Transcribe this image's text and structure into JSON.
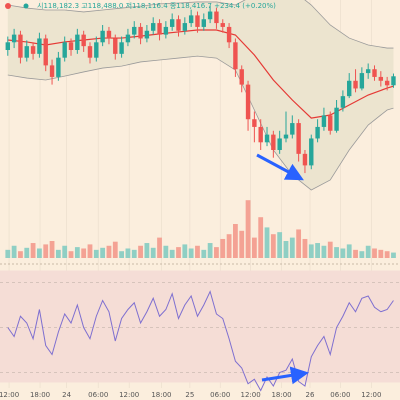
{
  "chart_data": {
    "type": "candlestick",
    "ohlc_label": "시118,182.3 고118,488.0 저118,116.4 종118,416.7 +234.4 (+0.20%)",
    "up_color": "#26a69a",
    "down_color": "#ef5350",
    "volume_up_color": "#8fcfc4",
    "volume_down_color": "#f4a294",
    "band_color": "#9a9a9a",
    "middle_color": "#e53935",
    "rsi_color": "#7e6fd0",
    "xlim": [
      -0.6,
      61.4
    ],
    "xticks": [
      {
        "value": 0.2,
        "label": "12:00"
      },
      {
        "value": 5.1,
        "label": "18:00"
      },
      {
        "value": 9.3,
        "label": "24"
      },
      {
        "value": 14.3,
        "label": "06:00"
      },
      {
        "value": 19.2,
        "label": "12:00"
      },
      {
        "value": 24.3,
        "label": "18:00"
      },
      {
        "value": 28.8,
        "label": "25"
      },
      {
        "value": 33.6,
        "label": "06:00"
      },
      {
        "value": 38.4,
        "label": "12:00"
      },
      {
        "value": 43.3,
        "label": "18:00"
      },
      {
        "value": 47.8,
        "label": "26"
      },
      {
        "value": 52.6,
        "label": "06:00"
      },
      {
        "value": 57.5,
        "label": "12:00"
      }
    ],
    "ylim": [
      115200,
      120400
    ],
    "open": [
      119100,
      119300,
      119500,
      118900,
      119200,
      119000,
      119400,
      118700,
      118400,
      118900,
      119300,
      119100,
      119500,
      119200,
      118900,
      119300,
      119600,
      119400,
      119000,
      119300,
      119500,
      119700,
      119400,
      119600,
      119800,
      119500,
      119700,
      119900,
      119600,
      119800,
      120000,
      119700,
      119900,
      120100,
      119800,
      119700,
      119300,
      118600,
      118200,
      117300,
      117100,
      116700,
      116900,
      116500,
      116800,
      116900,
      117200,
      116400,
      116100,
      116800,
      117100,
      117400,
      117000,
      117600,
      117900,
      118300,
      118100,
      118500,
      118600,
      118400,
      118300,
      118182.3
    ],
    "high": [
      119450,
      119650,
      119600,
      119350,
      119300,
      119550,
      119500,
      118850,
      119050,
      119450,
      119400,
      119650,
      119600,
      119300,
      119450,
      119750,
      119700,
      119500,
      119450,
      119650,
      119850,
      119800,
      119750,
      119950,
      119900,
      119850,
      120050,
      120000,
      119950,
      120150,
      120100,
      120050,
      120250,
      120200,
      119900,
      119800,
      119400,
      118700,
      118300,
      117500,
      117300,
      117100,
      117000,
      117000,
      117500,
      117400,
      117300,
      116500,
      116900,
      117300,
      117600,
      117500,
      117800,
      118050,
      118500,
      118600,
      118650,
      118750,
      118700,
      118550,
      118400,
      118488.0
    ],
    "low": [
      118950,
      119150,
      118750,
      118800,
      118850,
      118900,
      118550,
      118200,
      118300,
      118800,
      118950,
      119000,
      119050,
      118750,
      118800,
      119200,
      119250,
      118850,
      118900,
      119200,
      119400,
      119250,
      119300,
      119500,
      119350,
      119400,
      119600,
      119450,
      119500,
      119700,
      119550,
      119600,
      119800,
      119650,
      119550,
      119150,
      118400,
      118000,
      117000,
      116700,
      116500,
      116600,
      116300,
      116400,
      116700,
      116800,
      116200,
      115900,
      116000,
      116700,
      117000,
      116900,
      116950,
      117500,
      117850,
      118000,
      118050,
      118350,
      118300,
      118150,
      118050,
      118116.4
    ],
    "close": [
      119300,
      119500,
      118900,
      119200,
      119000,
      119400,
      118700,
      118400,
      118900,
      119300,
      119100,
      119500,
      119200,
      118900,
      119300,
      119600,
      119400,
      119000,
      119300,
      119500,
      119700,
      119400,
      119600,
      119800,
      119500,
      119700,
      119900,
      119600,
      119800,
      120000,
      119700,
      119900,
      120100,
      119800,
      119700,
      119300,
      118600,
      118200,
      117300,
      117100,
      116700,
      116900,
      116500,
      116800,
      116900,
      117200,
      116400,
      116100,
      116800,
      117100,
      117400,
      117000,
      117600,
      117900,
      118300,
      118100,
      118500,
      118600,
      118400,
      118300,
      118182.3,
      118416.7
    ],
    "bollinger": {
      "x": [
        0,
        3,
        6,
        9,
        12,
        15,
        18,
        21,
        24,
        27,
        30,
        33,
        36,
        39,
        42,
        45,
        48,
        51,
        54,
        57,
        60,
        61
      ],
      "upper": [
        120270,
        120190,
        120140,
        120140,
        120090,
        120140,
        120190,
        120240,
        120300,
        120320,
        120350,
        120350,
        120270,
        120530,
        120790,
        120660,
        120270,
        119750,
        119410,
        119230,
        119150,
        119150
      ],
      "middle": [
        119360,
        119310,
        119230,
        119310,
        119360,
        119410,
        119410,
        119460,
        119520,
        119570,
        119620,
        119620,
        119490,
        118970,
        118320,
        117800,
        117330,
        117410,
        117670,
        117930,
        118110,
        118160
      ],
      "lower": [
        118450,
        118370,
        118320,
        118420,
        118530,
        118630,
        118680,
        118790,
        118840,
        118890,
        118940,
        118890,
        118580,
        117540,
        116500,
        115850,
        115460,
        115720,
        116500,
        117150,
        117540,
        117590
      ]
    },
    "volume_ylim": [
      0,
      100
    ],
    "volume": [
      12,
      18,
      10,
      15,
      22,
      14,
      20,
      25,
      12,
      18,
      10,
      16,
      14,
      20,
      12,
      15,
      18,
      24,
      10,
      14,
      12,
      18,
      22,
      15,
      30,
      18,
      12,
      16,
      20,
      14,
      18,
      12,
      22,
      16,
      28,
      35,
      50,
      40,
      85,
      30,
      60,
      45,
      35,
      38,
      25,
      30,
      42,
      28,
      20,
      22,
      18,
      24,
      16,
      14,
      20,
      12,
      10,
      18,
      14,
      12,
      10,
      8
    ],
    "rsi_ylim": [
      20,
      80
    ],
    "rsi_levels": [
      30,
      50,
      70
    ],
    "rsi": [
      50,
      46,
      55,
      52,
      45,
      58,
      42,
      38,
      48,
      56,
      52,
      60,
      50,
      45,
      55,
      62,
      57,
      44,
      54,
      58,
      61,
      52,
      57,
      63,
      55,
      58,
      65,
      54,
      60,
      64,
      55,
      60,
      66,
      56,
      54,
      45,
      35,
      32,
      25,
      27,
      22,
      28,
      24,
      30,
      31,
      36,
      26,
      24,
      37,
      42,
      46,
      38,
      50,
      55,
      61,
      57,
      63,
      64,
      59,
      57,
      58,
      62
    ]
  }
}
